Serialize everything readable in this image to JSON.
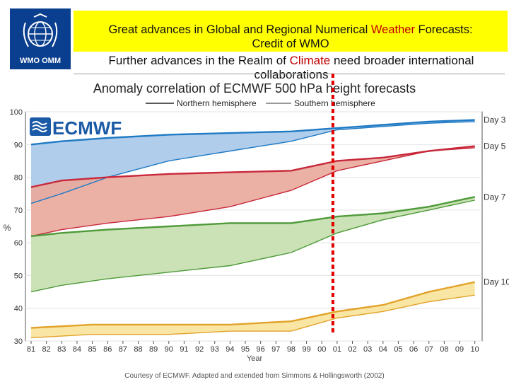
{
  "header": {
    "logo_text": "WMO OMM",
    "banner_line1_pre": "Great advances in Global and Regional Numerical ",
    "banner_line1_red": "Weather",
    "banner_line1_post": " Forecasts:",
    "banner_line2": "Credit of WMO",
    "subtitle_pre": "Further advances in the Realm of ",
    "subtitle_red": "Climate",
    "subtitle_post": " need broader international",
    "subtitle_line2": "collaborations"
  },
  "colors": {
    "banner": "#ffff00",
    "logo_bg": "#0a3f8f",
    "day3_line": "#1f7ac4",
    "day3_fill": "#a9c8ea",
    "day5_line": "#c8283a",
    "day5_fill": "#eaa89b",
    "day7_line": "#4f9a3a",
    "day7_fill": "#c4dfad",
    "day10_line": "#e2a22a",
    "day10_fill": "#f9e39a",
    "marker": "#e00000",
    "ecmwf_blue": "#1b5aa6"
  },
  "chart_data": {
    "type": "area",
    "title": "Anomaly correlation of ECMWF 500 hPa height forecasts",
    "xlabel": "Year",
    "ylabel": "%",
    "ylim": [
      30,
      100
    ],
    "yticks": [
      30,
      40,
      50,
      60,
      70,
      80,
      90,
      100
    ],
    "x": [
      "81",
      "82",
      "83",
      "84",
      "85",
      "86",
      "87",
      "88",
      "89",
      "90",
      "91",
      "92",
      "93",
      "94",
      "95",
      "96",
      "97",
      "98",
      "99",
      "00",
      "01",
      "02",
      "03",
      "04",
      "05",
      "06",
      "07",
      "08",
      "09",
      "10"
    ],
    "legend": [
      {
        "name": "Northern hemisphere",
        "style": "line"
      },
      {
        "name": "Southern hemisphere",
        "style": "line"
      }
    ],
    "logo": "ECMWF",
    "source": "Courtesy of ECMWF. Adapted and extended from Simmons & Hollingsworth (2002)",
    "marker_x": 2001,
    "series": [
      {
        "name": "Day 3",
        "north": [
          [
            1981,
            90
          ],
          [
            1983,
            91
          ],
          [
            1986,
            92
          ],
          [
            1990,
            93
          ],
          [
            1994,
            93.5
          ],
          [
            1998,
            94
          ],
          [
            2001,
            95
          ],
          [
            2004,
            96
          ],
          [
            2007,
            97
          ],
          [
            2010,
            97.5
          ]
        ],
        "south": [
          [
            1981,
            72
          ],
          [
            1983,
            75
          ],
          [
            1986,
            80
          ],
          [
            1990,
            85
          ],
          [
            1994,
            88
          ],
          [
            1998,
            91
          ],
          [
            2001,
            94.5
          ],
          [
            2004,
            95.5
          ],
          [
            2007,
            96.5
          ],
          [
            2010,
            97
          ]
        ]
      },
      {
        "name": "Day 5",
        "north": [
          [
            1981,
            77
          ],
          [
            1983,
            79
          ],
          [
            1986,
            80
          ],
          [
            1990,
            81
          ],
          [
            1994,
            81.5
          ],
          [
            1998,
            82
          ],
          [
            2001,
            85
          ],
          [
            2004,
            86
          ],
          [
            2007,
            88
          ],
          [
            2010,
            89.5
          ]
        ],
        "south": [
          [
            1981,
            62
          ],
          [
            1983,
            64
          ],
          [
            1986,
            66
          ],
          [
            1990,
            68
          ],
          [
            1994,
            71
          ],
          [
            1998,
            76
          ],
          [
            2001,
            82
          ],
          [
            2004,
            85
          ],
          [
            2007,
            88
          ],
          [
            2010,
            89
          ]
        ]
      },
      {
        "name": "Day 7",
        "north": [
          [
            1981,
            62
          ],
          [
            1983,
            63
          ],
          [
            1986,
            64
          ],
          [
            1990,
            65
          ],
          [
            1994,
            66
          ],
          [
            1998,
            66
          ],
          [
            2001,
            68
          ],
          [
            2004,
            69
          ],
          [
            2007,
            71
          ],
          [
            2010,
            74
          ]
        ],
        "south": [
          [
            1981,
            45
          ],
          [
            1983,
            47
          ],
          [
            1986,
            49
          ],
          [
            1990,
            51
          ],
          [
            1994,
            53
          ],
          [
            1998,
            57
          ],
          [
            2001,
            63
          ],
          [
            2004,
            67
          ],
          [
            2007,
            70
          ],
          [
            2010,
            73
          ]
        ]
      },
      {
        "name": "Day 10",
        "north": [
          [
            1981,
            34
          ],
          [
            1985,
            35
          ],
          [
            1990,
            35
          ],
          [
            1994,
            35
          ],
          [
            1998,
            36
          ],
          [
            2001,
            39
          ],
          [
            2004,
            41
          ],
          [
            2007,
            45
          ],
          [
            2010,
            48
          ]
        ],
        "south": [
          [
            1981,
            31
          ],
          [
            1985,
            32
          ],
          [
            1990,
            32
          ],
          [
            1994,
            33
          ],
          [
            1998,
            33
          ],
          [
            2001,
            37
          ],
          [
            2004,
            39
          ],
          [
            2007,
            42
          ],
          [
            2010,
            44
          ]
        ]
      }
    ]
  }
}
